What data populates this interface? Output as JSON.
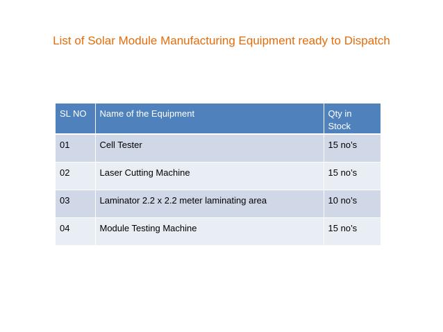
{
  "slide": {
    "title": "List of Solar Module Manufacturing Equipment ready to Dispatch",
    "title_color": "#e46c0a"
  },
  "table": {
    "header_color": "#4f81bd",
    "row_color_odd": "#d0d8e8",
    "row_color_even": "#e9edf4",
    "headers": [
      "SL NO",
      "Name of the Equipment",
      "Qty in Stock"
    ],
    "rows": [
      {
        "sl_no": "01",
        "name": "Cell Tester",
        "qty": "15 no’s"
      },
      {
        "sl_no": "02",
        "name": "Laser Cutting Machine",
        "qty": "15 no’s"
      },
      {
        "sl_no": "03",
        "name": "Laminator 2.2 x 2.2 meter laminating area",
        "qty": "10 no’s"
      },
      {
        "sl_no": "04",
        "name": "Module Testing Machine",
        "qty": "15 no’s"
      }
    ]
  }
}
